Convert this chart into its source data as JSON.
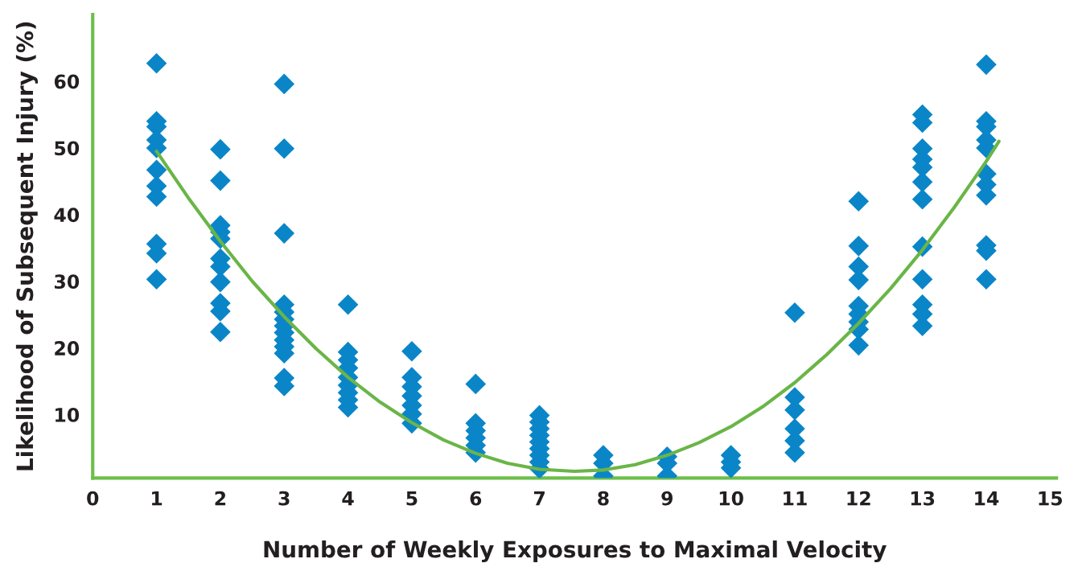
{
  "chart_data": {
    "type": "scatter",
    "xlabel": "Number of Weekly Exposures to Maximal Velocity",
    "ylabel": "Likelihood of Subsequent Injury (%)",
    "xlim": [
      0,
      15.1
    ],
    "ylim": [
      0.5,
      70
    ],
    "xticks": [
      0,
      1,
      2,
      3,
      4,
      5,
      6,
      7,
      8,
      9,
      10,
      11,
      12,
      13,
      14,
      15
    ],
    "yticks": [
      10,
      20,
      30,
      40,
      50,
      60
    ],
    "grid": false,
    "legend": false,
    "marker": "diamond",
    "series": [
      {
        "type": "scatter",
        "color": "#0a86c8",
        "x": [
          1,
          1,
          1,
          1,
          1,
          1,
          1,
          1,
          1,
          1,
          1,
          2,
          2,
          2,
          2,
          2,
          2,
          2,
          2,
          2,
          2,
          2,
          3,
          3,
          3,
          3,
          3,
          3,
          3,
          3,
          3,
          3,
          3,
          3,
          3,
          4,
          4,
          4,
          4,
          4,
          4,
          4,
          4,
          4,
          5,
          5,
          5,
          5,
          5,
          5,
          5,
          6,
          6,
          6,
          6,
          6,
          6,
          7,
          7,
          7,
          7,
          7,
          7,
          7,
          7,
          7,
          8,
          8,
          8,
          9,
          9,
          9,
          10,
          10,
          10,
          11,
          11,
          11,
          11,
          11,
          11,
          12,
          12,
          12,
          12,
          12,
          12,
          12,
          12,
          12,
          13,
          13,
          13,
          13,
          13,
          13,
          13,
          13,
          13,
          13,
          13,
          13,
          14,
          14,
          14,
          14,
          14,
          14,
          14,
          14,
          14,
          14,
          14
        ],
        "values": [
          62.7,
          54.0,
          53.2,
          51.2,
          50.0,
          46.7,
          44.3,
          42.7,
          35.6,
          34.2,
          30.3,
          49.8,
          45.1,
          38.4,
          37.4,
          36.4,
          33.4,
          32.2,
          29.9,
          26.7,
          25.5,
          22.4,
          59.6,
          49.9,
          37.2,
          26.5,
          25.4,
          24.3,
          23.3,
          22.3,
          21.2,
          20.2,
          19.2,
          15.5,
          14.3,
          26.5,
          19.4,
          18.2,
          17.0,
          15.6,
          14.4,
          13.3,
          12.2,
          11.1,
          19.5,
          15.6,
          14.2,
          12.8,
          11.4,
          10.1,
          8.7,
          14.6,
          8.7,
          7.6,
          6.5,
          5.4,
          4.3,
          9.9,
          8.9,
          7.9,
          6.9,
          5.9,
          4.9,
          3.9,
          2.9,
          1.9,
          3.9,
          2.7,
          0.8,
          3.7,
          2.7,
          0.8,
          3.9,
          2.9,
          2.0,
          25.3,
          12.6,
          10.7,
          7.9,
          6.1,
          4.3,
          42.0,
          35.3,
          32.2,
          30.2,
          26.3,
          25.1,
          23.9,
          22.8,
          20.4,
          55.0,
          53.8,
          49.9,
          48.3,
          47.1,
          44.9,
          42.3,
          35.2,
          30.3,
          26.5,
          25.1,
          23.3,
          62.5,
          54.0,
          53.2,
          51.2,
          50.0,
          46.1,
          44.5,
          42.9,
          35.4,
          34.6,
          30.3
        ]
      },
      {
        "type": "line",
        "color": "#6ab547",
        "marker": "none",
        "line_style": "solid",
        "x": [
          1,
          1.5,
          2,
          2.5,
          3,
          3.5,
          4,
          4.5,
          5,
          5.5,
          6,
          6.5,
          7,
          7.55,
          8,
          8.5,
          9,
          9.5,
          10,
          10.5,
          11,
          11.5,
          12,
          12.5,
          13,
          13.5,
          14,
          14.2
        ],
        "values": [
          49.5,
          42.5,
          36.0,
          30.0,
          24.7,
          19.9,
          15.6,
          11.9,
          8.8,
          6.2,
          4.2,
          2.7,
          1.8,
          1.5,
          1.7,
          2.5,
          3.9,
          5.8,
          8.2,
          11.2,
          14.8,
          19.0,
          23.7,
          28.9,
          34.7,
          41.1,
          48.0,
          51.0
        ]
      }
    ]
  }
}
